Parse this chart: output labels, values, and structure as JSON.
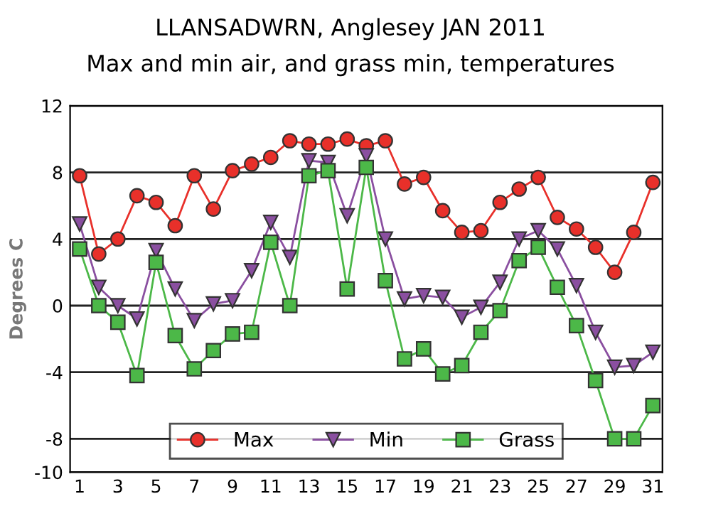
{
  "chart_data": {
    "type": "line",
    "title": "LLANSADWRN, Anglesey JAN 2011",
    "subtitle": "Max and min air, and grass min, temperatures",
    "ylabel": "Degrees C",
    "x": [
      1,
      2,
      3,
      4,
      5,
      6,
      7,
      8,
      9,
      10,
      11,
      12,
      13,
      14,
      15,
      16,
      17,
      18,
      19,
      20,
      21,
      22,
      23,
      24,
      25,
      26,
      27,
      28,
      29,
      30,
      31
    ],
    "xlim": [
      0.5,
      31.5
    ],
    "xticks": [
      1,
      3,
      5,
      7,
      9,
      11,
      13,
      15,
      17,
      19,
      21,
      23,
      25,
      27,
      29,
      31
    ],
    "ylim": [
      -10,
      12
    ],
    "yticks": [
      -10,
      -8,
      -4,
      0,
      4,
      8,
      12
    ],
    "grid": "y",
    "legend": "bottom",
    "line_style": "solid",
    "series": [
      {
        "name": "Max",
        "color": "#e8302a",
        "marker": "circle",
        "values": [
          7.8,
          3.1,
          4.0,
          6.6,
          6.2,
          4.8,
          7.8,
          5.8,
          8.1,
          8.5,
          8.9,
          9.9,
          9.7,
          9.7,
          10.0,
          9.6,
          9.9,
          7.3,
          7.7,
          5.7,
          4.4,
          4.5,
          6.2,
          7.0,
          7.7,
          5.3,
          4.6,
          3.5,
          2.0,
          4.4,
          7.4
        ]
      },
      {
        "name": "Min",
        "color": "#8a4fa0",
        "marker": "triangle",
        "values": [
          4.9,
          1.1,
          0.0,
          -0.8,
          3.3,
          1.0,
          -0.9,
          0.1,
          0.3,
          2.1,
          5.0,
          2.9,
          8.7,
          8.6,
          5.4,
          9.0,
          4.0,
          0.4,
          0.6,
          0.5,
          -0.7,
          -0.1,
          1.4,
          4.0,
          4.5,
          3.4,
          1.2,
          -1.6,
          -3.7,
          -3.6,
          -2.8
        ]
      },
      {
        "name": "Grass",
        "color": "#4cb848",
        "marker": "square",
        "values": [
          3.4,
          0.0,
          -1.0,
          -4.2,
          2.6,
          -1.8,
          -3.8,
          -2.7,
          -1.7,
          -1.6,
          3.8,
          0.0,
          7.8,
          8.1,
          1.0,
          8.3,
          1.5,
          -3.2,
          -2.6,
          -4.1,
          -3.6,
          -1.6,
          -0.3,
          2.7,
          3.5,
          1.1,
          -1.2,
          -4.5,
          -8.0,
          -8.0,
          -6.0
        ]
      }
    ]
  }
}
